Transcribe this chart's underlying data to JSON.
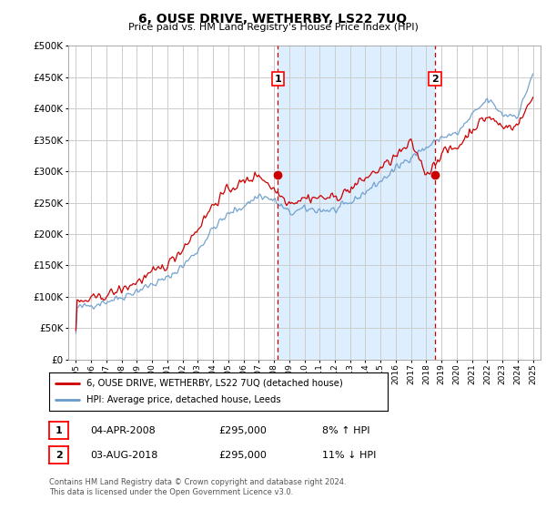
{
  "title": "6, OUSE DRIVE, WETHERBY, LS22 7UQ",
  "subtitle": "Price paid vs. HM Land Registry's House Price Index (HPI)",
  "bg_color": "#ffffff",
  "plot_bg_color": "#ffffff",
  "shaded_bg_color": "#ddeeff",
  "grid_color": "#cccccc",
  "red_line_color": "#cc0000",
  "blue_line_color": "#6699cc",
  "ylim": [
    0,
    500000
  ],
  "yticks": [
    0,
    50000,
    100000,
    150000,
    200000,
    250000,
    300000,
    350000,
    400000,
    450000,
    500000
  ],
  "xlim_start": 1994.5,
  "xlim_end": 2025.5,
  "xticks": [
    1995,
    1996,
    1997,
    1998,
    1999,
    2000,
    2001,
    2002,
    2003,
    2004,
    2005,
    2006,
    2007,
    2008,
    2009,
    2010,
    2011,
    2012,
    2013,
    2014,
    2015,
    2016,
    2017,
    2018,
    2019,
    2020,
    2021,
    2022,
    2023,
    2024,
    2025
  ],
  "sale1_x": 2008.25,
  "sale1_y": 295000,
  "sale1_label": "1",
  "sale1_date": "04-APR-2008",
  "sale1_price": "£295,000",
  "sale1_hpi": "8% ↑ HPI",
  "sale2_x": 2018.58,
  "sale2_y": 295000,
  "sale2_label": "2",
  "sale2_date": "03-AUG-2018",
  "sale2_price": "£295,000",
  "sale2_hpi": "11% ↓ HPI",
  "legend_label_red": "6, OUSE DRIVE, WETHERBY, LS22 7UQ (detached house)",
  "legend_label_blue": "HPI: Average price, detached house, Leeds",
  "footer": "Contains HM Land Registry data © Crown copyright and database right 2024.\nThis data is licensed under the Open Government Licence v3.0."
}
